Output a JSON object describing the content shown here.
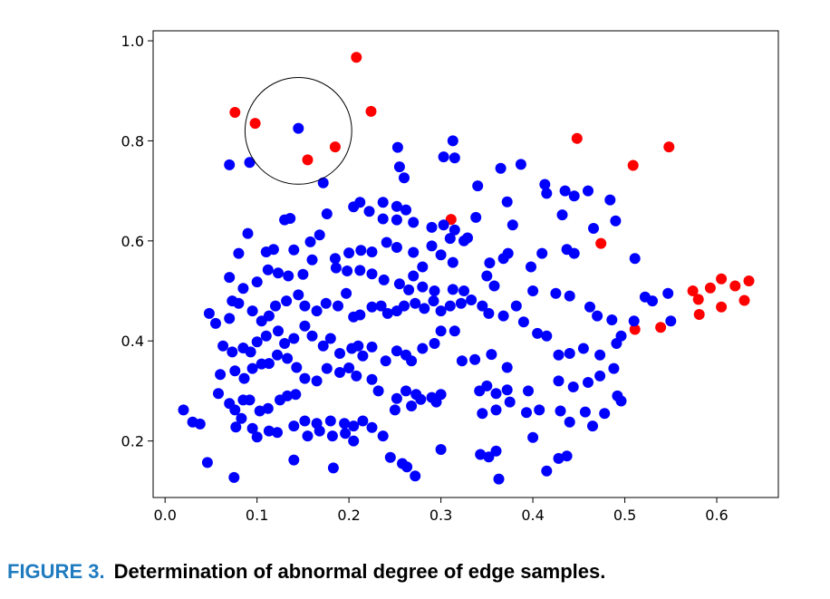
{
  "chart_data": {
    "type": "scatter",
    "xlim": [
      -0.013,
      0.667
    ],
    "ylim": [
      0.087,
      1.02
    ],
    "x_ticks": [
      "0.0",
      "0.1",
      "0.2",
      "0.3",
      "0.4",
      "0.5",
      "0.6"
    ],
    "y_ticks": [
      "0.2",
      "0.4",
      "0.6",
      "0.8",
      "1.0"
    ],
    "grid": false,
    "annotations": [
      {
        "type": "circle",
        "center": [
          0.145,
          0.82
        ],
        "radius_x": 0.058,
        "description": "highlighted neighborhood"
      }
    ],
    "series": [
      {
        "color": "#ff0000",
        "points": [
          [
            0.208,
            0.967
          ],
          [
            0.076,
            0.857
          ],
          [
            0.224,
            0.859
          ],
          [
            0.098,
            0.835
          ],
          [
            0.185,
            0.788
          ],
          [
            0.155,
            0.762
          ],
          [
            0.448,
            0.805
          ],
          [
            0.548,
            0.788
          ],
          [
            0.509,
            0.751
          ],
          [
            0.311,
            0.643
          ],
          [
            0.474,
            0.595
          ],
          [
            0.605,
            0.524
          ],
          [
            0.635,
            0.52
          ],
          [
            0.62,
            0.51
          ],
          [
            0.593,
            0.506
          ],
          [
            0.574,
            0.5
          ],
          [
            0.58,
            0.483
          ],
          [
            0.63,
            0.481
          ],
          [
            0.605,
            0.468
          ],
          [
            0.581,
            0.453
          ],
          [
            0.511,
            0.423
          ],
          [
            0.539,
            0.427
          ]
        ]
      },
      {
        "color": "#0000ff",
        "points": [
          [
            0.145,
            0.825
          ],
          [
            0.07,
            0.752
          ],
          [
            0.092,
            0.757
          ],
          [
            0.253,
            0.787
          ],
          [
            0.313,
            0.8
          ],
          [
            0.303,
            0.768
          ],
          [
            0.315,
            0.766
          ],
          [
            0.255,
            0.748
          ],
          [
            0.26,
            0.726
          ],
          [
            0.34,
            0.71
          ],
          [
            0.365,
            0.745
          ],
          [
            0.387,
            0.753
          ],
          [
            0.413,
            0.713
          ],
          [
            0.445,
            0.69
          ],
          [
            0.435,
            0.7
          ],
          [
            0.46,
            0.7
          ],
          [
            0.484,
            0.682
          ],
          [
            0.415,
            0.695
          ],
          [
            0.172,
            0.716
          ],
          [
            0.205,
            0.668
          ],
          [
            0.212,
            0.677
          ],
          [
            0.222,
            0.659
          ],
          [
            0.237,
            0.677
          ],
          [
            0.252,
            0.669
          ],
          [
            0.262,
            0.662
          ],
          [
            0.237,
            0.644
          ],
          [
            0.252,
            0.642
          ],
          [
            0.27,
            0.637
          ],
          [
            0.29,
            0.627
          ],
          [
            0.303,
            0.632
          ],
          [
            0.315,
            0.622
          ],
          [
            0.329,
            0.606
          ],
          [
            0.338,
            0.647
          ],
          [
            0.372,
            0.678
          ],
          [
            0.378,
            0.632
          ],
          [
            0.432,
            0.652
          ],
          [
            0.49,
            0.64
          ],
          [
            0.466,
            0.625
          ],
          [
            0.13,
            0.642
          ],
          [
            0.136,
            0.645
          ],
          [
            0.176,
            0.654
          ],
          [
            0.168,
            0.612
          ],
          [
            0.158,
            0.598
          ],
          [
            0.11,
            0.578
          ],
          [
            0.118,
            0.583
          ],
          [
            0.14,
            0.582
          ],
          [
            0.09,
            0.615
          ],
          [
            0.08,
            0.575
          ],
          [
            0.185,
            0.565
          ],
          [
            0.2,
            0.576
          ],
          [
            0.213,
            0.581
          ],
          [
            0.225,
            0.578
          ],
          [
            0.241,
            0.597
          ],
          [
            0.252,
            0.587
          ],
          [
            0.27,
            0.577
          ],
          [
            0.29,
            0.59
          ],
          [
            0.31,
            0.605
          ],
          [
            0.325,
            0.6
          ],
          [
            0.3,
            0.572
          ],
          [
            0.313,
            0.557
          ],
          [
            0.28,
            0.548
          ],
          [
            0.27,
            0.53
          ],
          [
            0.353,
            0.556
          ],
          [
            0.368,
            0.565
          ],
          [
            0.373,
            0.575
          ],
          [
            0.398,
            0.548
          ],
          [
            0.41,
            0.575
          ],
          [
            0.437,
            0.583
          ],
          [
            0.445,
            0.575
          ],
          [
            0.511,
            0.565
          ],
          [
            0.07,
            0.527
          ],
          [
            0.085,
            0.505
          ],
          [
            0.1,
            0.518
          ],
          [
            0.112,
            0.542
          ],
          [
            0.123,
            0.536
          ],
          [
            0.134,
            0.53
          ],
          [
            0.15,
            0.533
          ],
          [
            0.16,
            0.562
          ],
          [
            0.186,
            0.546
          ],
          [
            0.198,
            0.54
          ],
          [
            0.212,
            0.541
          ],
          [
            0.225,
            0.534
          ],
          [
            0.238,
            0.522
          ],
          [
            0.255,
            0.514
          ],
          [
            0.265,
            0.502
          ],
          [
            0.28,
            0.508
          ],
          [
            0.293,
            0.5
          ],
          [
            0.313,
            0.503
          ],
          [
            0.325,
            0.5
          ],
          [
            0.35,
            0.53
          ],
          [
            0.358,
            0.51
          ],
          [
            0.4,
            0.5
          ],
          [
            0.425,
            0.495
          ],
          [
            0.44,
            0.49
          ],
          [
            0.048,
            0.455
          ],
          [
            0.055,
            0.435
          ],
          [
            0.07,
            0.445
          ],
          [
            0.073,
            0.48
          ],
          [
            0.08,
            0.475
          ],
          [
            0.095,
            0.46
          ],
          [
            0.105,
            0.44
          ],
          [
            0.113,
            0.45
          ],
          [
            0.12,
            0.47
          ],
          [
            0.132,
            0.48
          ],
          [
            0.145,
            0.492
          ],
          [
            0.152,
            0.47
          ],
          [
            0.165,
            0.46
          ],
          [
            0.175,
            0.475
          ],
          [
            0.188,
            0.47
          ],
          [
            0.197,
            0.495
          ],
          [
            0.205,
            0.448
          ],
          [
            0.212,
            0.452
          ],
          [
            0.225,
            0.468
          ],
          [
            0.235,
            0.47
          ],
          [
            0.242,
            0.455
          ],
          [
            0.252,
            0.46
          ],
          [
            0.26,
            0.47
          ],
          [
            0.272,
            0.475
          ],
          [
            0.282,
            0.465
          ],
          [
            0.292,
            0.48
          ],
          [
            0.3,
            0.46
          ],
          [
            0.31,
            0.47
          ],
          [
            0.322,
            0.475
          ],
          [
            0.333,
            0.482
          ],
          [
            0.345,
            0.47
          ],
          [
            0.352,
            0.455
          ],
          [
            0.368,
            0.45
          ],
          [
            0.382,
            0.47
          ],
          [
            0.39,
            0.438
          ],
          [
            0.462,
            0.468
          ],
          [
            0.47,
            0.45
          ],
          [
            0.486,
            0.442
          ],
          [
            0.51,
            0.44
          ],
          [
            0.522,
            0.488
          ],
          [
            0.53,
            0.48
          ],
          [
            0.547,
            0.495
          ],
          [
            0.55,
            0.44
          ],
          [
            0.063,
            0.39
          ],
          [
            0.073,
            0.378
          ],
          [
            0.085,
            0.386
          ],
          [
            0.093,
            0.378
          ],
          [
            0.1,
            0.398
          ],
          [
            0.11,
            0.41
          ],
          [
            0.123,
            0.42
          ],
          [
            0.13,
            0.395
          ],
          [
            0.14,
            0.405
          ],
          [
            0.152,
            0.43
          ],
          [
            0.16,
            0.41
          ],
          [
            0.172,
            0.39
          ],
          [
            0.18,
            0.405
          ],
          [
            0.19,
            0.375
          ],
          [
            0.203,
            0.385
          ],
          [
            0.21,
            0.39
          ],
          [
            0.215,
            0.37
          ],
          [
            0.225,
            0.388
          ],
          [
            0.24,
            0.36
          ],
          [
            0.252,
            0.38
          ],
          [
            0.262,
            0.372
          ],
          [
            0.268,
            0.36
          ],
          [
            0.28,
            0.385
          ],
          [
            0.293,
            0.395
          ],
          [
            0.3,
            0.42
          ],
          [
            0.315,
            0.42
          ],
          [
            0.323,
            0.36
          ],
          [
            0.337,
            0.363
          ],
          [
            0.355,
            0.373
          ],
          [
            0.372,
            0.347
          ],
          [
            0.405,
            0.415
          ],
          [
            0.415,
            0.41
          ],
          [
            0.428,
            0.372
          ],
          [
            0.44,
            0.375
          ],
          [
            0.455,
            0.385
          ],
          [
            0.473,
            0.372
          ],
          [
            0.491,
            0.395
          ],
          [
            0.496,
            0.41
          ],
          [
            0.06,
            0.333
          ],
          [
            0.076,
            0.34
          ],
          [
            0.086,
            0.325
          ],
          [
            0.095,
            0.345
          ],
          [
            0.105,
            0.354
          ],
          [
            0.113,
            0.355
          ],
          [
            0.122,
            0.372
          ],
          [
            0.133,
            0.365
          ],
          [
            0.143,
            0.347
          ],
          [
            0.152,
            0.325
          ],
          [
            0.165,
            0.32
          ],
          [
            0.176,
            0.345
          ],
          [
            0.19,
            0.337
          ],
          [
            0.2,
            0.346
          ],
          [
            0.208,
            0.33
          ],
          [
            0.225,
            0.323
          ],
          [
            0.232,
            0.3
          ],
          [
            0.252,
            0.285
          ],
          [
            0.262,
            0.3
          ],
          [
            0.273,
            0.293
          ],
          [
            0.29,
            0.287
          ],
          [
            0.3,
            0.293
          ],
          [
            0.342,
            0.3
          ],
          [
            0.35,
            0.31
          ],
          [
            0.36,
            0.295
          ],
          [
            0.372,
            0.302
          ],
          [
            0.395,
            0.3
          ],
          [
            0.428,
            0.32
          ],
          [
            0.444,
            0.308
          ],
          [
            0.46,
            0.317
          ],
          [
            0.473,
            0.33
          ],
          [
            0.488,
            0.345
          ],
          [
            0.492,
            0.29
          ],
          [
            0.496,
            0.28
          ],
          [
            0.058,
            0.295
          ],
          [
            0.07,
            0.275
          ],
          [
            0.076,
            0.262
          ],
          [
            0.085,
            0.282
          ],
          [
            0.092,
            0.282
          ],
          [
            0.103,
            0.26
          ],
          [
            0.112,
            0.265
          ],
          [
            0.125,
            0.282
          ],
          [
            0.133,
            0.29
          ],
          [
            0.142,
            0.293
          ],
          [
            0.152,
            0.24
          ],
          [
            0.165,
            0.235
          ],
          [
            0.18,
            0.24
          ],
          [
            0.195,
            0.235
          ],
          [
            0.205,
            0.23
          ],
          [
            0.215,
            0.24
          ],
          [
            0.225,
            0.227
          ],
          [
            0.237,
            0.21
          ],
          [
            0.25,
            0.262
          ],
          [
            0.268,
            0.27
          ],
          [
            0.278,
            0.283
          ],
          [
            0.295,
            0.278
          ],
          [
            0.345,
            0.255
          ],
          [
            0.36,
            0.262
          ],
          [
            0.375,
            0.278
          ],
          [
            0.393,
            0.257
          ],
          [
            0.407,
            0.262
          ],
          [
            0.43,
            0.26
          ],
          [
            0.44,
            0.238
          ],
          [
            0.457,
            0.258
          ],
          [
            0.465,
            0.23
          ],
          [
            0.478,
            0.255
          ],
          [
            0.02,
            0.262
          ],
          [
            0.03,
            0.238
          ],
          [
            0.038,
            0.234
          ],
          [
            0.046,
            0.157
          ],
          [
            0.077,
            0.228
          ],
          [
            0.083,
            0.245
          ],
          [
            0.095,
            0.225
          ],
          [
            0.1,
            0.208
          ],
          [
            0.113,
            0.22
          ],
          [
            0.122,
            0.217
          ],
          [
            0.14,
            0.23
          ],
          [
            0.155,
            0.21
          ],
          [
            0.168,
            0.22
          ],
          [
            0.182,
            0.21
          ],
          [
            0.196,
            0.215
          ],
          [
            0.205,
            0.2
          ],
          [
            0.245,
            0.167
          ],
          [
            0.258,
            0.155
          ],
          [
            0.263,
            0.148
          ],
          [
            0.272,
            0.13
          ],
          [
            0.3,
            0.183
          ],
          [
            0.343,
            0.173
          ],
          [
            0.352,
            0.168
          ],
          [
            0.36,
            0.18
          ],
          [
            0.363,
            0.124
          ],
          [
            0.4,
            0.207
          ],
          [
            0.415,
            0.14
          ],
          [
            0.428,
            0.165
          ],
          [
            0.437,
            0.17
          ],
          [
            0.075,
            0.127
          ],
          [
            0.183,
            0.146
          ],
          [
            0.14,
            0.162
          ]
        ]
      }
    ]
  },
  "caption": {
    "label": "FIGURE 3.",
    "text": "Determination of abnormal degree of edge samples."
  }
}
